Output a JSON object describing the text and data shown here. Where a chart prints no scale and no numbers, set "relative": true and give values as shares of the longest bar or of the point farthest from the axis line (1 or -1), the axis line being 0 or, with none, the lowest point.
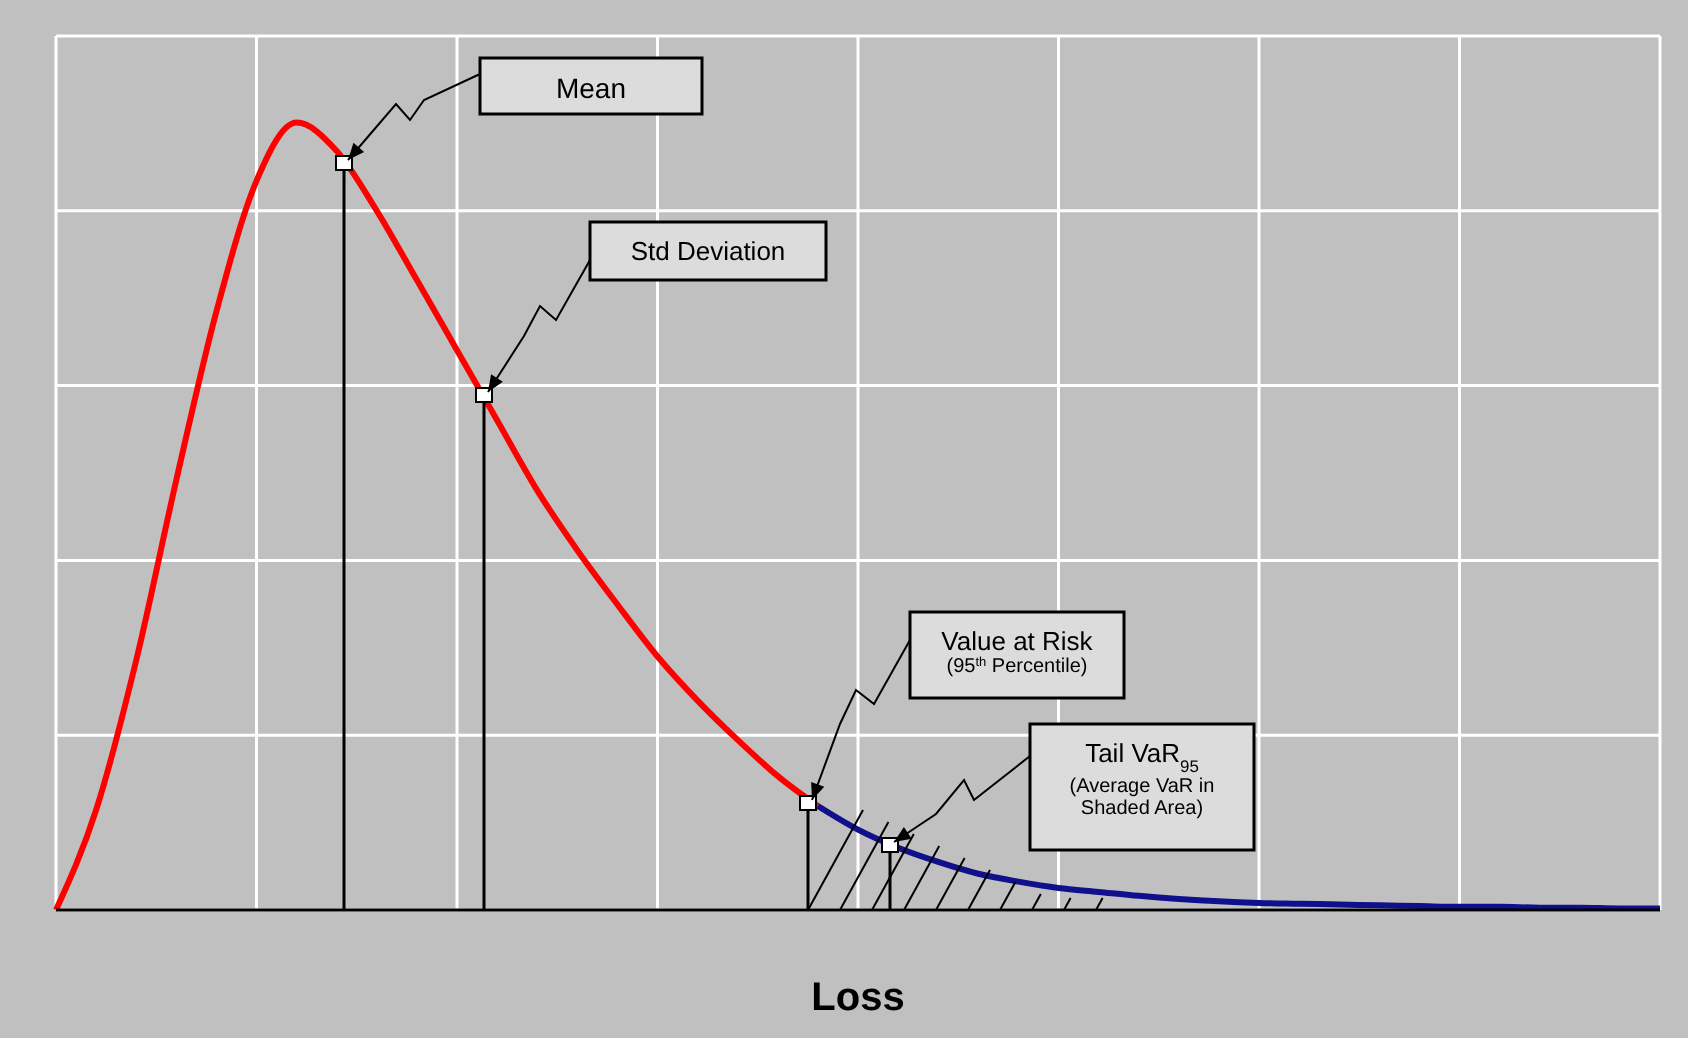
{
  "chart_data": {
    "type": "line",
    "relative": true,
    "xlabel": "Loss",
    "grid": true,
    "marker": "none",
    "line_style": "solid",
    "categories": [
      null,
      null,
      null,
      null,
      null,
      null,
      null,
      null,
      null,
      null,
      null,
      null,
      null,
      null,
      null,
      null,
      null,
      null,
      null,
      null,
      null,
      null,
      null,
      null,
      null,
      null,
      null,
      null,
      null,
      null,
      null,
      null,
      null,
      null,
      null,
      null,
      null,
      null,
      null,
      null,
      null
    ],
    "series": [
      {
        "color": "#ff0000",
        "values": [
          0,
          0.127,
          0.317,
          0.546,
          0.76,
          0.926,
          1,
          0.964,
          0.888,
          0.8,
          0.711,
          0.622,
          0.533,
          0.457,
          0.388,
          0.322,
          0.266,
          0.216,
          0.17,
          0.132,
          null,
          null,
          null,
          null,
          null,
          null,
          null,
          null,
          null,
          null,
          null,
          null,
          null,
          null,
          null,
          null,
          null,
          null,
          null,
          null,
          null
        ]
      },
      {
        "color": "#10108c",
        "values": [
          null,
          null,
          null,
          null,
          null,
          null,
          null,
          null,
          null,
          null,
          null,
          null,
          null,
          null,
          null,
          null,
          null,
          null,
          null,
          0.132,
          0.102,
          0.079,
          0.061,
          0.046,
          0.036,
          0.028,
          0.023,
          0.018,
          0.014,
          0.011,
          0.009,
          0.008,
          0.007,
          0.006,
          0.005,
          0.004,
          0.004,
          0.003,
          0.003,
          0.002,
          0.002
        ]
      }
    ],
    "annotations": [
      "Mean",
      "Std Deviation",
      "Value at Risk\n(95$^{th}$ Percentile)",
      "Tail VaR$_{95}$\n(Average VaR in\nShaded Area)"
    ]
  }
}
